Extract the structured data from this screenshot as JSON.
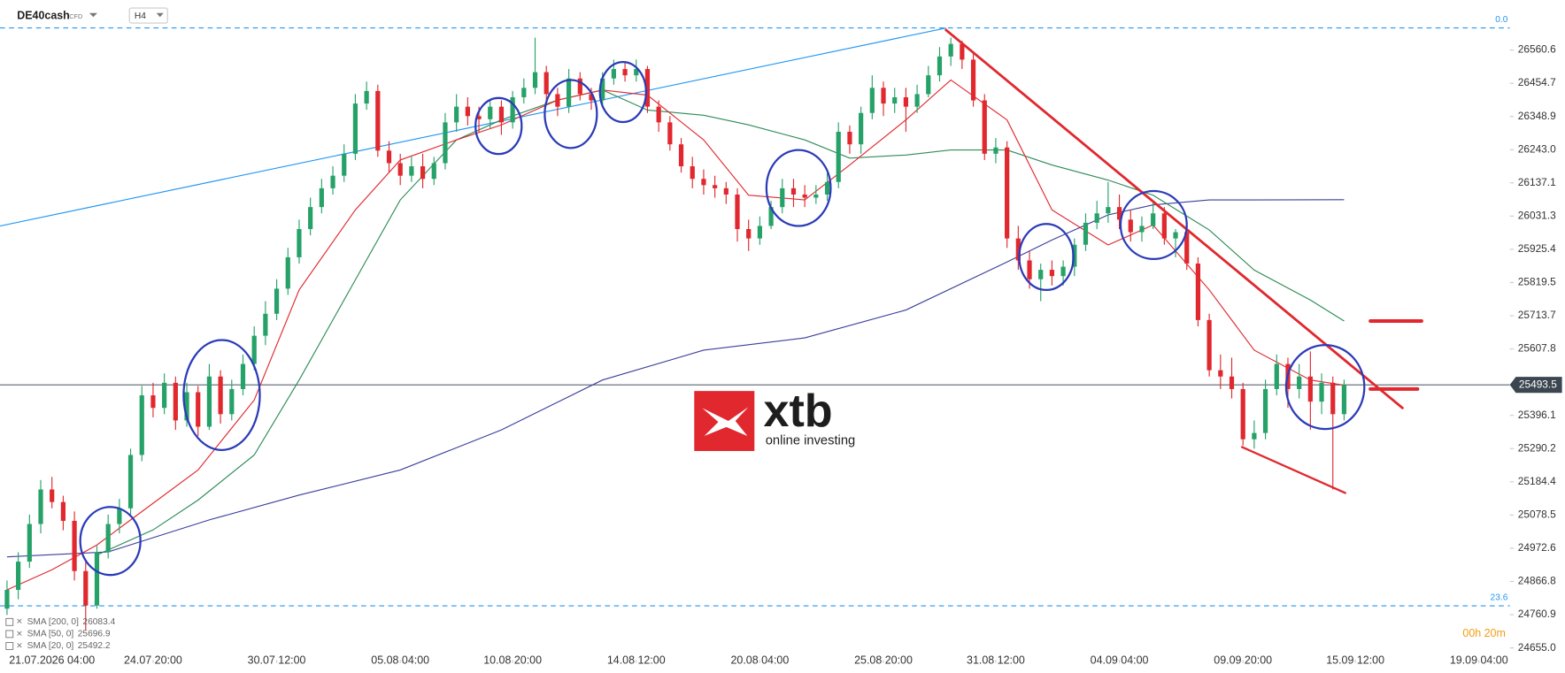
{
  "chart_data": {
    "type": "candlestick",
    "symbol": "DE40cash",
    "instrument_type": "CFD",
    "timeframe": "H4",
    "up_color": "#26a269",
    "down_color": "#e0282e",
    "open": [
      24780,
      24840,
      24930,
      25050,
      25160,
      25120,
      25060,
      24900,
      24790,
      24960,
      25050,
      25100,
      25270,
      25460,
      25420,
      25500,
      25380,
      25470,
      25360,
      25520,
      25400,
      25480,
      25560,
      25650,
      25720,
      25800,
      25900,
      25990,
      26060,
      26120,
      26160,
      26230,
      26390,
      26430,
      26240,
      26200,
      26160,
      26190,
      26150,
      26200,
      26330,
      26380,
      26350,
      26340,
      26380,
      26330,
      26410,
      26440,
      26490,
      26420,
      26380,
      26470,
      26420,
      26400,
      26470,
      26500,
      26480,
      26500,
      26380,
      26330,
      26260,
      26190,
      26150,
      26130,
      26120,
      26100,
      25990,
      25960,
      26000,
      26060,
      26120,
      26100,
      26090,
      26100,
      26140,
      26300,
      26260,
      26360,
      26440,
      26390,
      26410,
      26380,
      26420,
      26480,
      26540,
      26580,
      26530,
      26400,
      26230,
      26250,
      25960,
      25890,
      25830,
      25860,
      25840,
      25870,
      25940,
      26010,
      26040,
      26060,
      26020,
      25980,
      26000,
      26040,
      25960,
      25980,
      25880,
      25700,
      25540,
      25520,
      25480,
      25320,
      25340,
      25480,
      25560,
      25480,
      25520,
      25440,
      25500,
      25400
    ],
    "high": [
      24870,
      24960,
      25080,
      25190,
      25200,
      25140,
      25090,
      24930,
      24980,
      25080,
      25130,
      25290,
      25490,
      25500,
      25530,
      25520,
      25500,
      25490,
      25560,
      25540,
      25510,
      25590,
      25680,
      25760,
      25830,
      25930,
      26020,
      26090,
      26150,
      26190,
      26260,
      26420,
      26460,
      26450,
      26270,
      26230,
      26220,
      26230,
      26220,
      26360,
      26420,
      26410,
      26380,
      26400,
      26400,
      26430,
      26470,
      26600,
      26510,
      26440,
      26500,
      26490,
      26440,
      26490,
      26530,
      26520,
      26530,
      26510,
      26400,
      26350,
      26280,
      26220,
      26180,
      26160,
      26140,
      26120,
      26020,
      26030,
      26080,
      26150,
      26150,
      26130,
      26130,
      26170,
      26330,
      26320,
      26380,
      26480,
      26460,
      26440,
      26440,
      26450,
      26510,
      26570,
      26600,
      26590,
      26550,
      26420,
      26280,
      26270,
      26000,
      25920,
      25880,
      25890,
      25890,
      25960,
      26040,
      26080,
      26140,
      26100,
      26050,
      26030,
      26080,
      26060,
      25990,
      26000,
      25900,
      25720,
      25590,
      25580,
      25500,
      25380,
      25510,
      25590,
      25580,
      25560,
      25600,
      25530,
      25520,
      25510
    ],
    "low": [
      24760,
      24810,
      24910,
      25020,
      25100,
      25030,
      24870,
      24712,
      24780,
      24940,
      25020,
      25080,
      25250,
      25390,
      25400,
      25350,
      25360,
      25330,
      25350,
      25370,
      25380,
      25460,
      25540,
      25620,
      25700,
      25780,
      25880,
      25970,
      26040,
      26100,
      26140,
      26210,
      26370,
      26220,
      26170,
      26130,
      26140,
      26120,
      26130,
      26180,
      26300,
      26320,
      26300,
      26310,
      26290,
      26310,
      26390,
      26420,
      26400,
      26350,
      26360,
      26400,
      26370,
      26380,
      26450,
      26460,
      26460,
      26360,
      26300,
      26240,
      26170,
      26120,
      26100,
      26090,
      26070,
      25950,
      25920,
      25940,
      25990,
      26040,
      26060,
      26060,
      26070,
      26080,
      26120,
      26230,
      26230,
      26340,
      26350,
      26360,
      26300,
      26360,
      26410,
      26460,
      26510,
      26500,
      26380,
      26210,
      26200,
      25930,
      25860,
      25800,
      25760,
      25810,
      25810,
      25840,
      25920,
      25990,
      26010,
      25990,
      25950,
      25950,
      25990,
      25940,
      25900,
      25860,
      25680,
      25520,
      25480,
      25450,
      25300,
      25290,
      25320,
      25460,
      25420,
      25450,
      25350,
      25400,
      25160,
      25380
    ],
    "close": [
      24840,
      24930,
      25050,
      25160,
      25120,
      25060,
      24900,
      24790,
      24960,
      25050,
      25100,
      25270,
      25460,
      25420,
      25500,
      25380,
      25470,
      25360,
      25520,
      25400,
      25480,
      25560,
      25650,
      25720,
      25800,
      25900,
      25990,
      26060,
      26120,
      26160,
      26230,
      26390,
      26430,
      26240,
      26200,
      26160,
      26190,
      26150,
      26200,
      26330,
      26380,
      26350,
      26340,
      26380,
      26330,
      26410,
      26440,
      26490,
      26420,
      26380,
      26470,
      26420,
      26400,
      26470,
      26500,
      26480,
      26500,
      26380,
      26330,
      26260,
      26190,
      26150,
      26130,
      26120,
      26100,
      25990,
      25960,
      26000,
      26060,
      26120,
      26100,
      26090,
      26100,
      26140,
      26300,
      26260,
      26360,
      26440,
      26390,
      26410,
      26380,
      26420,
      26480,
      26540,
      26580,
      26530,
      26400,
      26230,
      26250,
      25960,
      25890,
      25830,
      25860,
      25840,
      25870,
      25940,
      26010,
      26040,
      26060,
      26020,
      25980,
      26000,
      26040,
      25960,
      25980,
      25880,
      25700,
      25540,
      25520,
      25480,
      25320,
      25340,
      25480,
      25560,
      25480,
      25520,
      25440,
      25500,
      25400,
      25493.5
    ],
    "sma": [
      {
        "name": "SMA [200, 0]",
        "color": "#3a3f9a",
        "x": [
          0,
          9,
          18,
          26,
          35,
          44,
          53,
          62,
          71,
          80,
          89,
          93,
          98,
          102,
          107,
          111,
          119
        ],
        "values": [
          24945,
          24961,
          25063,
          25142,
          25222,
          25350,
          25509,
          25604,
          25643,
          25732,
          25885,
          25955,
          26035,
          26067,
          26083,
          26083,
          26083.4
        ]
      },
      {
        "name": "SMA [50, 0]",
        "color": "#2e8b57",
        "x": [
          8,
          13,
          17,
          22,
          26,
          31,
          35,
          40,
          44,
          49,
          53,
          57,
          62,
          66,
          71,
          75,
          80,
          84,
          89,
          93,
          98,
          102,
          107,
          111,
          116,
          119
        ],
        "values": [
          24951,
          25031,
          25126,
          25270,
          25509,
          25828,
          26083,
          26274,
          26338,
          26401,
          26433,
          26369,
          26353,
          26322,
          26274,
          26216,
          26226,
          26242,
          26242,
          26194,
          26146,
          26098,
          25987,
          25859,
          25764,
          25696.9
        ]
      },
      {
        "name": "SMA [20, 0]",
        "color": "#e0282e",
        "x": [
          0,
          4,
          8,
          11,
          17,
          22,
          26,
          31,
          35,
          40,
          44,
          49,
          53,
          57,
          62,
          66,
          71,
          75,
          80,
          84,
          89,
          93,
          98,
          102,
          107,
          111,
          116,
          119
        ],
        "values": [
          24840,
          24904,
          24983,
          25063,
          25222,
          25445,
          25796,
          26051,
          26210,
          26274,
          26322,
          26401,
          26433,
          26417,
          26274,
          26098,
          26083,
          26194,
          26338,
          26465,
          26338,
          26051,
          25939,
          26003,
          25796,
          25604,
          25509,
          25492.2
        ]
      }
    ],
    "last_price": 25493.5,
    "levels": [
      {
        "label": "0.0",
        "value": 26631
      },
      {
        "label": "23.6",
        "value": 24789
      }
    ],
    "xlim": [
      -0.625,
      133.75
    ],
    "xticks": [
      {
        "value": 4,
        "label": "21.07.2026 04:00"
      },
      {
        "value": 13,
        "label": "24.07 20:00"
      },
      {
        "value": 24,
        "label": "30.07 12:00"
      },
      {
        "value": 35,
        "label": "05.08 04:00"
      },
      {
        "value": 45,
        "label": "10.08 20:00"
      },
      {
        "value": 56,
        "label": "14.08 12:00"
      },
      {
        "value": 67,
        "label": "20.08 04:00"
      },
      {
        "value": 78,
        "label": "25.08 20:00"
      },
      {
        "value": 88,
        "label": "31.08 12:00"
      },
      {
        "value": 99,
        "label": "04.09 04:00"
      },
      {
        "value": 110,
        "label": "09.09 20:00"
      },
      {
        "value": 120,
        "label": "15.09 12:00"
      },
      {
        "value": 131,
        "label": "19.09 04:00"
      }
    ],
    "ylim": [
      24616.5,
      26720
    ],
    "yticks": [
      26560.6,
      26454.7,
      26348.9,
      {
        "value": 26243.0,
        "label": "26243.0"
      },
      26137.1,
      26031.3,
      25925.4,
      25819.5,
      25713.7,
      25607.8,
      25396.1,
      25290.2,
      25184.4,
      25078.5,
      24972.6,
      24866.8,
      24760.9,
      {
        "value": 24655.0,
        "label": "24655.0"
      }
    ],
    "countdown": "00h 20m",
    "logo": {
      "brand": "xtb",
      "tagline": "online investing"
    }
  }
}
